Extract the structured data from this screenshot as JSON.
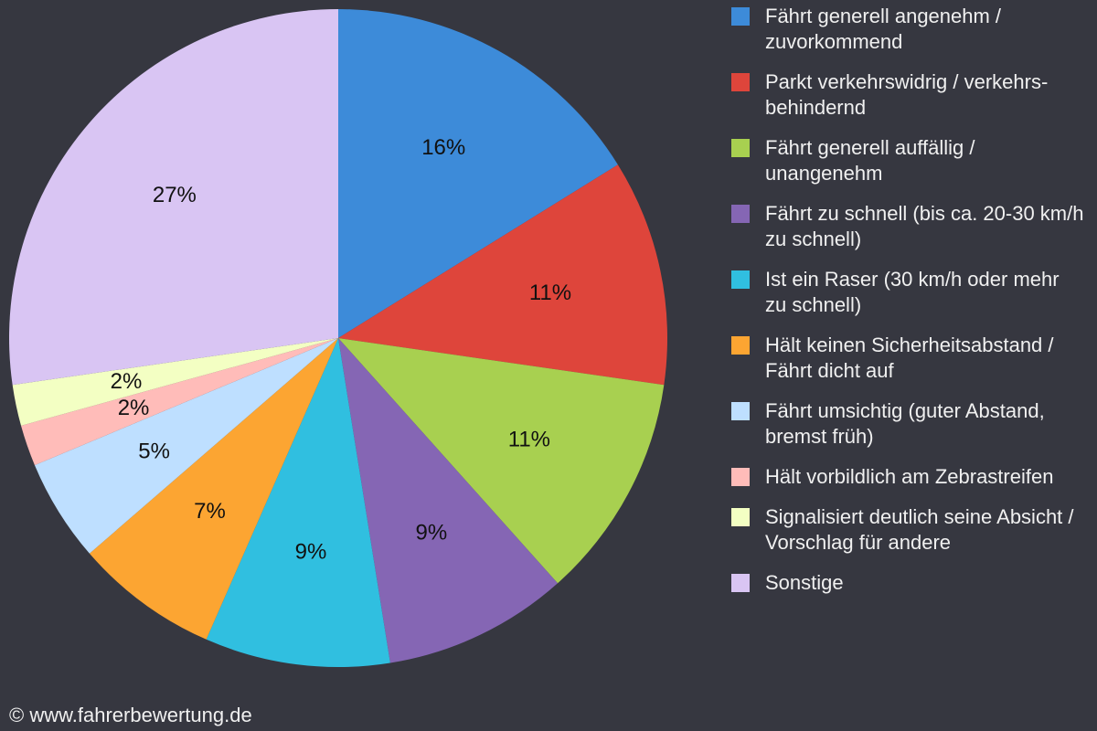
{
  "chart_data": {
    "type": "pie",
    "categories": [
      "Fährt generell angenehm / zuvorkommend",
      "Parkt verkehrswidrig / verkehrs-behindernd",
      "Fährt generell auffällig / unangenehm",
      "Fährt zu schnell (bis ca. 20-30 km/h zu schnell)",
      "Ist ein Raser (30 km/h oder mehr zu schnell)",
      "Hält keinen Sicherheitsabstand / Fährt dicht auf",
      "Fährt umsichtig (guter Abstand, bremst früh)",
      "Hält vorbildlich am Zebrastreifen",
      "Signalisiert deutlich seine Absicht / Vorschlag für andere",
      "Sonstige"
    ],
    "values": [
      16,
      11,
      11,
      9,
      9,
      7,
      5,
      2,
      2,
      27
    ],
    "value_labels": [
      "16%",
      "11%",
      "11%",
      "9%",
      "9%",
      "7%",
      "5%",
      "2%",
      "2%",
      "27%"
    ],
    "colors": [
      "#3d8bd9",
      "#de453b",
      "#a8d050",
      "#8566b4",
      "#30bfe0",
      "#fca532",
      "#bedfff",
      "#ffbcb9",
      "#f3ffc3",
      "#d9c5f3"
    ],
    "legend": "right"
  },
  "footer": "© www.fahrerbewertung.de"
}
